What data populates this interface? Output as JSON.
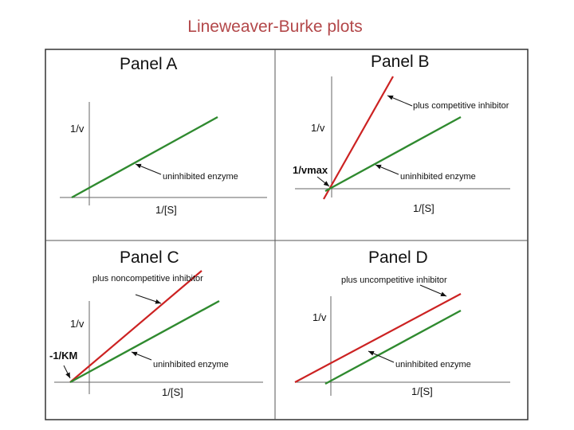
{
  "title": "Lineweaver-Burke plots",
  "colors": {
    "title": "#b3484a",
    "inhibited_line": "#cc2222",
    "uninhibited_line": "#2f8a2f",
    "frame": "#333333",
    "axis": "#666666"
  },
  "panels": [
    {
      "label": "Panel A",
      "y_axis": "1/v",
      "x_axis": "1/[S]",
      "annotations": [
        {
          "text": "uninhibited enzyme"
        }
      ]
    },
    {
      "label": "Panel B",
      "y_axis": "1/v",
      "x_axis": "1/[S]",
      "intercept_label": "1/vmax",
      "annotations": [
        {
          "text": "plus competitive inhibitor"
        },
        {
          "text": "uninhibited enzyme"
        }
      ]
    },
    {
      "label": "Panel C",
      "y_axis": "1/v",
      "x_axis": "1/[S]",
      "intercept_label": "-1/KM",
      "annotations": [
        {
          "text": "plus noncompetitive inhibitor"
        },
        {
          "text": "uninhibited enzyme"
        }
      ]
    },
    {
      "label": "Panel D",
      "y_axis": "1/v",
      "x_axis": "1/[S]",
      "annotations": [
        {
          "text": "plus uncompetitive inhibitor"
        },
        {
          "text": "uninhibited enzyme"
        }
      ]
    }
  ]
}
